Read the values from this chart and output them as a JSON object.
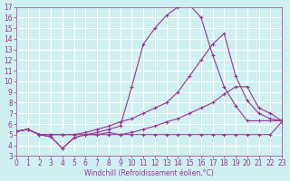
{
  "xlabel": "Windchill (Refroidissement éolien,°C)",
  "bg_color": "#cff0f0",
  "grid_color": "#ffffff",
  "line_color": "#993399",
  "xmin": 0,
  "xmax": 23,
  "ymin": 3,
  "ymax": 17,
  "yticks": [
    3,
    4,
    5,
    6,
    7,
    8,
    9,
    10,
    11,
    12,
    13,
    14,
    15,
    16,
    17
  ],
  "xticks": [
    0,
    1,
    2,
    3,
    4,
    5,
    6,
    7,
    8,
    9,
    10,
    11,
    12,
    13,
    14,
    15,
    16,
    17,
    18,
    19,
    20,
    21,
    22,
    23
  ],
  "line1_x": [
    0,
    1,
    2,
    3,
    4,
    5,
    6,
    7,
    8,
    9,
    10,
    11,
    12,
    13,
    14,
    15,
    16,
    17,
    18,
    19,
    20,
    21,
    22,
    23
  ],
  "line1_y": [
    5.3,
    5.5,
    5.0,
    4.8,
    3.7,
    4.7,
    5.0,
    5.0,
    5.2,
    5.0,
    5.0,
    5.0,
    5.0,
    5.0,
    5.0,
    5.0,
    5.0,
    5.0,
    5.0,
    5.0,
    5.0,
    5.0,
    5.0,
    6.2
  ],
  "line2_x": [
    0,
    1,
    2,
    3,
    4,
    5,
    6,
    7,
    8,
    9,
    10,
    11,
    12,
    13,
    14,
    15,
    16,
    17,
    18,
    19,
    20,
    21,
    22,
    23
  ],
  "line2_y": [
    5.3,
    5.5,
    5.0,
    4.8,
    3.7,
    4.7,
    5.0,
    5.2,
    5.5,
    5.8,
    9.5,
    13.5,
    15.0,
    16.2,
    17.0,
    17.2,
    16.0,
    12.5,
    9.5,
    7.7,
    6.3,
    6.3,
    6.3,
    6.3
  ],
  "line3_x": [
    0,
    1,
    2,
    3,
    4,
    5,
    6,
    7,
    8,
    9,
    10,
    11,
    12,
    13,
    14,
    15,
    16,
    17,
    18,
    19,
    20,
    21,
    22,
    23
  ],
  "line3_y": [
    5.3,
    5.5,
    5.0,
    5.0,
    5.0,
    5.0,
    5.2,
    5.5,
    5.8,
    6.2,
    6.5,
    7.0,
    7.5,
    8.0,
    9.0,
    10.5,
    12.0,
    13.5,
    14.5,
    10.5,
    8.2,
    7.0,
    6.5,
    6.3
  ],
  "line4_x": [
    0,
    1,
    2,
    3,
    4,
    5,
    6,
    7,
    8,
    9,
    10,
    11,
    12,
    13,
    14,
    15,
    16,
    17,
    18,
    19,
    20,
    21,
    22,
    23
  ],
  "line4_y": [
    5.3,
    5.5,
    5.0,
    5.0,
    5.0,
    5.0,
    5.0,
    5.0,
    5.0,
    5.0,
    5.2,
    5.5,
    5.8,
    6.2,
    6.5,
    7.0,
    7.5,
    8.0,
    8.8,
    9.5,
    9.5,
    7.5,
    7.0,
    6.3
  ],
  "tick_fontsize": 5.5,
  "xlabel_fontsize": 5.5,
  "marker_size": 2.0,
  "line_width": 0.8
}
